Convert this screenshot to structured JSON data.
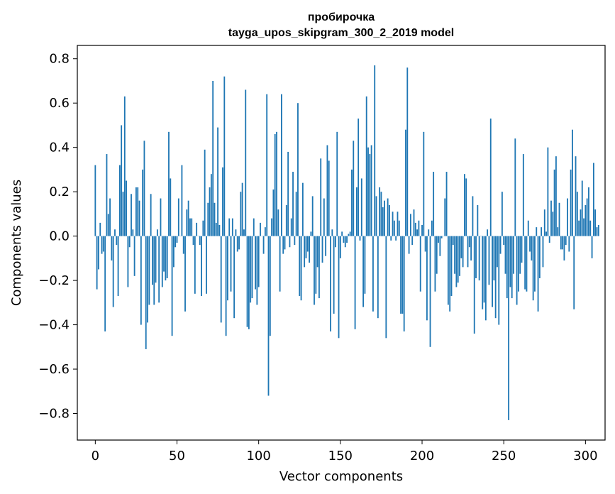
{
  "chart_data": {
    "type": "bar",
    "title": "пробирочка",
    "subtitle": "tayga_upos_skipgram_300_2_2019 model",
    "xlabel": "Vector components",
    "ylabel": "Components values",
    "xlim": [
      -11,
      312
    ],
    "ylim": [
      -0.92,
      0.86
    ],
    "xticks": [
      0,
      50,
      100,
      150,
      200,
      250,
      300
    ],
    "xtick_labels": [
      "0",
      "50",
      "100",
      "150",
      "200",
      "250",
      "300"
    ],
    "yticks": [
      -0.8,
      -0.6,
      -0.4,
      -0.2,
      0.0,
      0.2,
      0.4,
      0.6,
      0.8
    ],
    "ytick_labels": [
      "−0.8",
      "−0.6",
      "−0.4",
      "−0.2",
      "0.0",
      "0.2",
      "0.4",
      "0.6",
      "0.8"
    ],
    "grid": false,
    "bar_color": "#1f77b4",
    "x_start": 0,
    "values": [
      0.32,
      -0.24,
      -0.15,
      0.06,
      -0.08,
      -0.07,
      -0.43,
      0.37,
      0.1,
      0.17,
      -0.11,
      -0.32,
      0.03,
      -0.04,
      -0.27,
      0.32,
      0.5,
      0.2,
      0.63,
      0.25,
      -0.23,
      -0.05,
      0.19,
      0.03,
      -0.18,
      0.22,
      0.22,
      0.16,
      -0.4,
      0.3,
      0.43,
      -0.51,
      -0.39,
      -0.31,
      0.19,
      -0.22,
      -0.31,
      -0.21,
      0.03,
      -0.3,
      0.17,
      -0.23,
      -0.16,
      -0.2,
      -0.19,
      0.47,
      0.26,
      -0.45,
      -0.14,
      -0.05,
      -0.03,
      0.17,
      0.0,
      0.32,
      -0.08,
      -0.34,
      0.12,
      0.16,
      0.08,
      0.08,
      -0.04,
      -0.26,
      0.06,
      0.0,
      -0.04,
      -0.27,
      0.07,
      0.39,
      -0.26,
      0.15,
      0.22,
      0.28,
      0.7,
      0.15,
      0.06,
      0.49,
      0.05,
      -0.39,
      0.31,
      0.72,
      -0.45,
      -0.29,
      0.08,
      -0.25,
      0.08,
      -0.37,
      0.03,
      -0.07,
      -0.06,
      0.2,
      0.24,
      0.03,
      0.66,
      -0.41,
      -0.42,
      -0.3,
      -0.28,
      0.08,
      -0.24,
      -0.31,
      -0.23,
      0.06,
      0.0,
      -0.08,
      0.04,
      0.64,
      -0.72,
      -0.45,
      0.08,
      0.21,
      0.46,
      0.47,
      0.12,
      -0.25,
      0.64,
      -0.08,
      -0.06,
      0.14,
      0.38,
      -0.05,
      0.08,
      0.29,
      -0.04,
      0.2,
      0.6,
      -0.27,
      -0.29,
      0.24,
      -0.14,
      -0.1,
      -0.07,
      -0.12,
      0.02,
      0.18,
      -0.31,
      -0.26,
      -0.14,
      -0.28,
      0.35,
      -0.12,
      0.17,
      -0.09,
      0.41,
      0.34,
      -0.43,
      0.03,
      -0.35,
      -0.05,
      0.47,
      -0.46,
      -0.1,
      0.02,
      -0.03,
      -0.05,
      -0.03,
      0.01,
      0.02,
      0.3,
      0.43,
      -0.42,
      0.22,
      0.53,
      -0.02,
      0.26,
      -0.32,
      -0.26,
      0.63,
      0.4,
      0.37,
      0.41,
      -0.34,
      0.77,
      0.18,
      -0.37,
      0.22,
      0.2,
      0.13,
      0.16,
      -0.46,
      0.17,
      0.14,
      -0.02,
      0.11,
      0.07,
      -0.02,
      0.11,
      0.07,
      -0.35,
      -0.35,
      -0.43,
      0.48,
      0.76,
      -0.08,
      0.1,
      -0.04,
      0.12,
      0.06,
      0.03,
      0.07,
      -0.25,
      0.05,
      0.47,
      -0.07,
      -0.38,
      0.03,
      -0.5,
      0.07,
      0.29,
      -0.25,
      -0.17,
      -0.03,
      -0.09,
      -0.01,
      0.0,
      0.17,
      0.29,
      -0.31,
      -0.34,
      -0.27,
      -0.04,
      -0.17,
      -0.23,
      -0.21,
      -0.18,
      -0.1,
      -0.14,
      0.28,
      0.26,
      -0.14,
      -0.05,
      -0.11,
      0.18,
      -0.44,
      -0.19,
      0.14,
      -0.2,
      0.0,
      -0.33,
      -0.3,
      -0.38,
      0.03,
      -0.22,
      0.53,
      -0.32,
      -0.2,
      -0.37,
      -0.14,
      -0.4,
      -0.08,
      0.2,
      -0.04,
      -0.17,
      -0.28,
      -0.83,
      -0.23,
      -0.28,
      -0.17,
      0.44,
      -0.31,
      -0.25,
      -0.17,
      -0.12,
      0.37,
      -0.24,
      -0.25,
      0.07,
      -0.07,
      -0.11,
      -0.29,
      -0.25,
      0.04,
      -0.34,
      -0.19,
      0.04,
      -0.14,
      0.12,
      0.02,
      0.4,
      -0.03,
      0.16,
      0.11,
      0.3,
      0.36,
      0.04,
      0.15,
      -0.06,
      -0.06,
      -0.11,
      -0.04,
      0.17,
      -0.07,
      0.3,
      0.48,
      -0.33,
      0.36,
      0.2,
      0.07,
      0.12,
      0.25,
      0.08,
      0.14,
      0.17,
      0.22,
      0.07,
      -0.1,
      0.33,
      0.12,
      0.04,
      0.05
    ]
  }
}
